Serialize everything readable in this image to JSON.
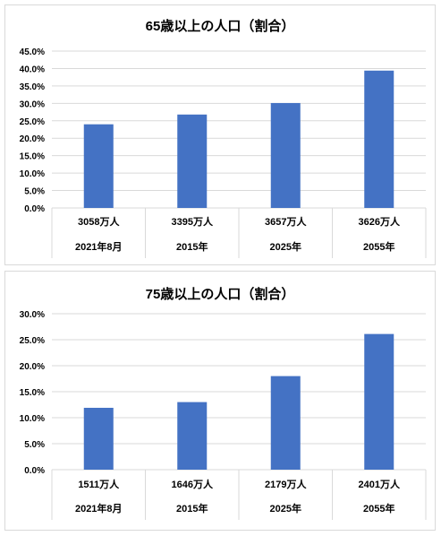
{
  "chart_data": [
    {
      "type": "bar",
      "title": "65歳以上の人口（割合）",
      "categories": [
        "2021年8月",
        "2015年",
        "2025年",
        "2055年"
      ],
      "sublabels": [
        "3058万人",
        "3395万人",
        "3657万人",
        "3626万人"
      ],
      "values": [
        0.24,
        0.268,
        0.301,
        0.394
      ],
      "ylim": [
        0,
        0.45
      ],
      "yticks": [
        0,
        0.05,
        0.1,
        0.15,
        0.2,
        0.25,
        0.3,
        0.35,
        0.4,
        0.45
      ],
      "ytick_labels": [
        "0.0%",
        "5.0%",
        "10.0%",
        "15.0%",
        "20.0%",
        "25.0%",
        "30.0%",
        "35.0%",
        "40.0%",
        "45.0%"
      ],
      "grid": true,
      "bar_color": "#4472c4"
    },
    {
      "type": "bar",
      "title": "75歳以上の人口（割合）",
      "categories": [
        "2021年8月",
        "2015年",
        "2025年",
        "2055年"
      ],
      "sublabels": [
        "1511万人",
        "1646万人",
        "2179万人",
        "2401万人"
      ],
      "values": [
        0.119,
        0.13,
        0.18,
        0.261
      ],
      "ylim": [
        0,
        0.3
      ],
      "yticks": [
        0,
        0.05,
        0.1,
        0.15,
        0.2,
        0.25,
        0.3
      ],
      "ytick_labels": [
        "0.0%",
        "5.0%",
        "10.0%",
        "15.0%",
        "20.0%",
        "25.0%",
        "30.0%"
      ],
      "grid": true,
      "bar_color": "#4472c4"
    }
  ]
}
